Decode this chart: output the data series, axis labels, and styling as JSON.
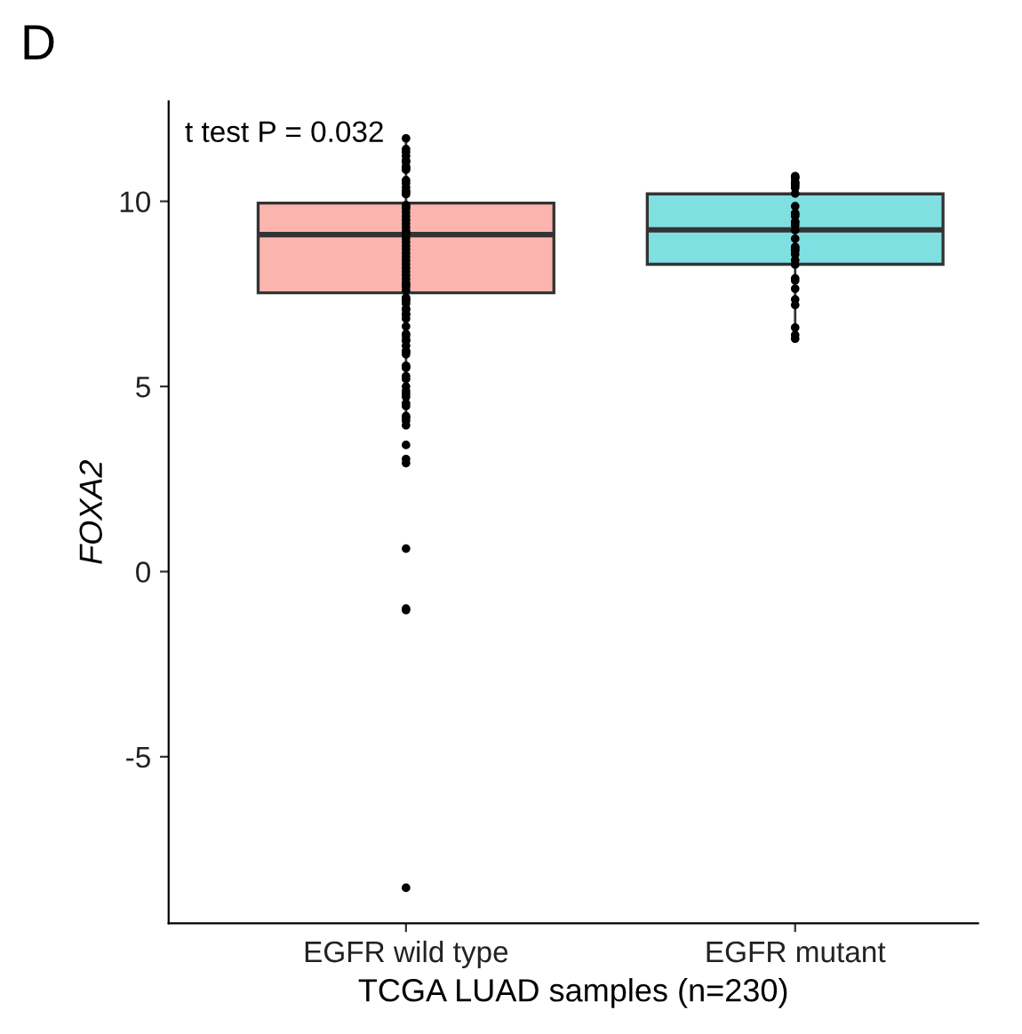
{
  "chart_data": {
    "type": "box",
    "title": "D",
    "xlabel": "TCGA LUAD samples (n=230)",
    "ylabel": "FOXA2",
    "annotations": [
      "t test P = 0.032"
    ],
    "categories": [
      "EGFR wild type",
      "EGFR mutant"
    ],
    "ylim": [
      -9.5,
      12.7
    ],
    "yticks": [
      -5,
      0,
      5,
      10
    ],
    "grid": false,
    "legend": false,
    "series": [
      {
        "colors": [
          "#fbb4ae",
          "#7fdfe1"
        ],
        "boxes": [
          {
            "low": 4.0,
            "q1": 7.53,
            "median": 9.1,
            "q3": 9.95,
            "high": 11.67
          },
          {
            "low": 6.3,
            "q1": 8.3,
            "median": 9.23,
            "q3": 10.2,
            "high": 10.68
          }
        ]
      },
      {
        "type": "scatter",
        "color": "#000000",
        "marker": "circle",
        "x": [
          "EGFR wild type",
          "EGFR wild type",
          "EGFR wild type",
          "EGFR wild type",
          "EGFR wild type",
          "EGFR wild type",
          "EGFR wild type",
          "EGFR wild type",
          "EGFR wild type",
          "EGFR wild type",
          "EGFR wild type",
          "EGFR wild type",
          "EGFR wild type",
          "EGFR wild type",
          "EGFR wild type",
          "EGFR wild type",
          "EGFR wild type",
          "EGFR wild type",
          "EGFR wild type",
          "EGFR wild type",
          "EGFR wild type",
          "EGFR wild type",
          "EGFR wild type",
          "EGFR wild type",
          "EGFR wild type",
          "EGFR wild type",
          "EGFR wild type",
          "EGFR wild type",
          "EGFR wild type",
          "EGFR wild type",
          "EGFR wild type",
          "EGFR wild type",
          "EGFR wild type",
          "EGFR wild type",
          "EGFR wild type",
          "EGFR wild type",
          "EGFR wild type",
          "EGFR wild type",
          "EGFR wild type",
          "EGFR wild type",
          "EGFR wild type",
          "EGFR wild type",
          "EGFR wild type",
          "EGFR wild type",
          "EGFR wild type",
          "EGFR wild type",
          "EGFR wild type",
          "EGFR wild type",
          "EGFR wild type",
          "EGFR wild type",
          "EGFR wild type",
          "EGFR wild type",
          "EGFR wild type",
          "EGFR wild type",
          "EGFR wild type",
          "EGFR wild type",
          "EGFR wild type",
          "EGFR wild type",
          "EGFR wild type",
          "EGFR wild type",
          "EGFR wild type",
          "EGFR wild type",
          "EGFR wild type",
          "EGFR wild type",
          "EGFR wild type",
          "EGFR wild type",
          "EGFR wild type",
          "EGFR wild type",
          "EGFR wild type",
          "EGFR wild type",
          "EGFR wild type",
          "EGFR wild type",
          "EGFR wild type",
          "EGFR wild type",
          "EGFR wild type",
          "EGFR wild type",
          "EGFR wild type",
          "EGFR wild type",
          "EGFR wild type",
          "EGFR wild type",
          "EGFR wild type",
          "EGFR wild type",
          "EGFR mutant",
          "EGFR mutant",
          "EGFR mutant",
          "EGFR mutant",
          "EGFR mutant",
          "EGFR mutant",
          "EGFR mutant",
          "EGFR mutant",
          "EGFR mutant",
          "EGFR mutant",
          "EGFR mutant",
          "EGFR mutant",
          "EGFR mutant",
          "EGFR mutant",
          "EGFR mutant",
          "EGFR mutant",
          "EGFR mutant",
          "EGFR mutant",
          "EGFR mutant",
          "EGFR mutant",
          "EGFR mutant",
          "EGFR mutant",
          "EGFR mutant",
          "EGFR mutant",
          "EGFR mutant",
          "EGFR mutant",
          "EGFR mutant",
          "EGFR mutant",
          "EGFR mutant",
          "EGFR mutant",
          "EGFR mutant",
          "EGFR mutant",
          "EGFR mutant"
        ],
        "values": [
          11.7,
          11.41,
          11.22,
          11.33,
          11.1,
          11.06,
          10.94,
          10.89,
          10.85,
          10.57,
          10.49,
          10.38,
          10.29,
          10.24,
          10.19,
          9.9,
          9.8,
          9.7,
          9.6,
          9.5,
          9.4,
          9.3,
          9.2,
          9.1,
          9.0,
          8.9,
          8.8,
          8.7,
          8.6,
          8.5,
          8.4,
          8.3,
          8.2,
          8.1,
          8.0,
          7.9,
          7.8,
          7.7,
          7.6,
          7.32,
          7.4,
          7.35,
          7.1,
          7.07,
          6.94,
          6.83,
          6.96,
          7.24,
          6.62,
          6.37,
          6.23,
          6.26,
          6.42,
          6.1,
          5.93,
          5.87,
          5.96,
          5.53,
          5.5,
          5.56,
          5.28,
          5.2,
          5.0,
          4.88,
          4.8,
          4.72,
          4.55,
          4.47,
          4.2,
          4.15,
          4.07,
          3.95,
          3.42,
          3.04,
          2.93,
          0.62,
          -1.04,
          -1.0,
          -8.54,
          9.85,
          9.15,
          7.75,
          10.65,
          10.68,
          10.62,
          10.36,
          10.41,
          10.52,
          10.21,
          10.45,
          10.49,
          9.64,
          9.68,
          9.87,
          9.43,
          9.45,
          9.22,
          9.35,
          9.6,
          8.99,
          8.75,
          8.77,
          8.57,
          8.41,
          8.67,
          8.69,
          8.29,
          7.92,
          7.35,
          7.64,
          7.2,
          7.86,
          6.59,
          6.39,
          6.29
        ]
      }
    ]
  }
}
